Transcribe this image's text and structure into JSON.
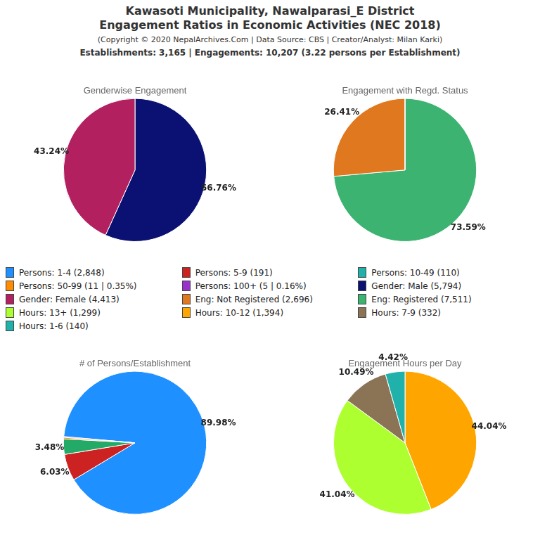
{
  "title": [
    "Kawasoti Municipality, Nawalparasi_E District",
    "Engagement Ratios in Economic Activities (NEC 2018)"
  ],
  "subtitle": "(Copyright © 2020 NepalArchives.Com | Data Source: CBS | Creator/Analyst: Milan Karki)",
  "annotations": [
    "Establishments: 3,165 | Engagements: 10,207 (3.22 persons per Establishment)"
  ],
  "legend_entries": [
    {
      "name": "Persons: 1-4 (2,848)",
      "color": "#1E90FF"
    },
    {
      "name": "Persons: 5-9 (191)",
      "color": "#CC2222"
    },
    {
      "name": "Persons: 10-49 (110)",
      "color": "#20B2AA"
    },
    {
      "name": "Persons: 50-99 (11 | 0.35%)",
      "color": "#FF8C00"
    },
    {
      "name": "Persons: 100+ (5 | 0.16%)",
      "color": "#9932CC"
    },
    {
      "name": "Gender: Male (5,794)",
      "color": "#0A1172"
    },
    {
      "name": "Gender: Female (4,413)",
      "color": "#B22060"
    },
    {
      "name": "Eng: Not Registered (2,696)",
      "color": "#E07820"
    },
    {
      "name": "Eng: Registered (7,511)",
      "color": "#3CB371"
    },
    {
      "name": "Hours: 13+ (1,299)",
      "color": "#ADFF2F"
    },
    {
      "name": "Hours: 10-12 (1,394)",
      "color": "#FFA500"
    },
    {
      "name": "Hours: 7-9 (332)",
      "color": "#8B7355"
    },
    {
      "name": "Hours: 1-6 (140)",
      "color": "#20B2AA"
    }
  ],
  "chart_data": [
    {
      "type": "pie",
      "title": "Genderwise Engagement",
      "values": [
        56.76,
        43.24
      ],
      "colors": [
        "#0A1172",
        "#B22060"
      ],
      "data_labels": true,
      "value_labels": [
        "56.76%",
        "43.24%"
      ]
    },
    {
      "type": "pie",
      "title": "Engagement with Regd. Status",
      "values": [
        73.59,
        26.41,
        0.001
      ],
      "colors": [
        "#3CB371",
        "#E07820",
        "#1A5C38"
      ],
      "data_labels": true,
      "value_labels": [
        "73.59%",
        "26.41%",
        null
      ]
    },
    {
      "type": "pie",
      "title": "# of Persons/Establishment",
      "values": [
        89.98,
        6.03,
        3.48,
        0.35,
        0.16
      ],
      "colors": [
        "#1E90FF",
        "#CC2222",
        "#22AA66",
        "#FF8C00",
        "#9932CC"
      ],
      "data_labels": true,
      "value_labels": [
        "89.98%",
        "6.03%",
        "3.48%",
        null,
        null
      ]
    },
    {
      "type": "pie",
      "title": "Engagement Hours per Day",
      "values": [
        44.04,
        41.04,
        10.49,
        4.42
      ],
      "colors": [
        "#FFA500",
        "#ADFF2F",
        "#8B7355",
        "#20B2AA"
      ],
      "data_labels": true,
      "value_labels": [
        "44.04%",
        "41.04%",
        "10.49%",
        "4.42%"
      ]
    }
  ]
}
